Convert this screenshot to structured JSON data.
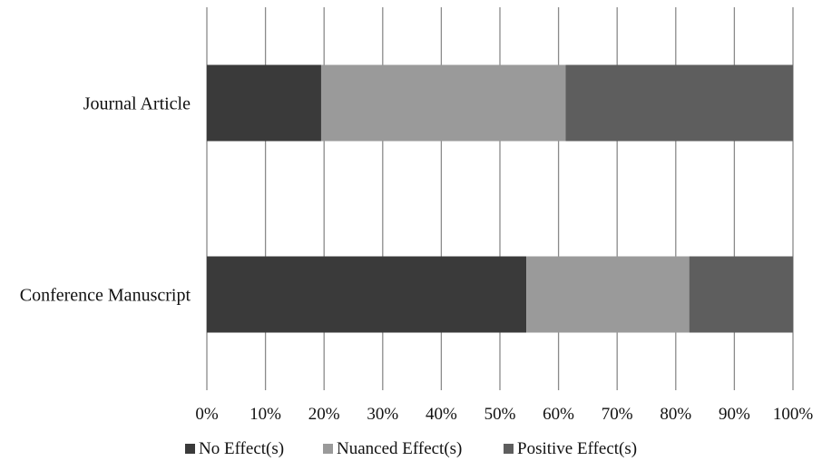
{
  "chart_data": {
    "type": "bar",
    "orientation": "horizontal",
    "stacked": "percent",
    "categories": [
      "Journal Article",
      "Conference Manuscript"
    ],
    "series": [
      {
        "name": "No Effect(s)",
        "color": "#3a3a3a",
        "values": [
          19.5,
          54.5
        ]
      },
      {
        "name": "Nuanced Effect(s)",
        "color": "#9a9a9a",
        "values": [
          41.7,
          27.8
        ]
      },
      {
        "name": "Positive Effect(s)",
        "color": "#5e5e5e",
        "values": [
          38.8,
          17.7
        ]
      }
    ],
    "xlim": [
      0,
      100
    ],
    "x_ticks": [
      0,
      10,
      20,
      30,
      40,
      50,
      60,
      70,
      80,
      90,
      100
    ],
    "x_tick_labels": [
      "0%",
      "10%",
      "20%",
      "30%",
      "40%",
      "50%",
      "60%",
      "70%",
      "80%",
      "90%",
      "100%"
    ],
    "grid": "vertical",
    "legend_position": "bottom",
    "title": "",
    "xlabel": "",
    "ylabel": ""
  }
}
